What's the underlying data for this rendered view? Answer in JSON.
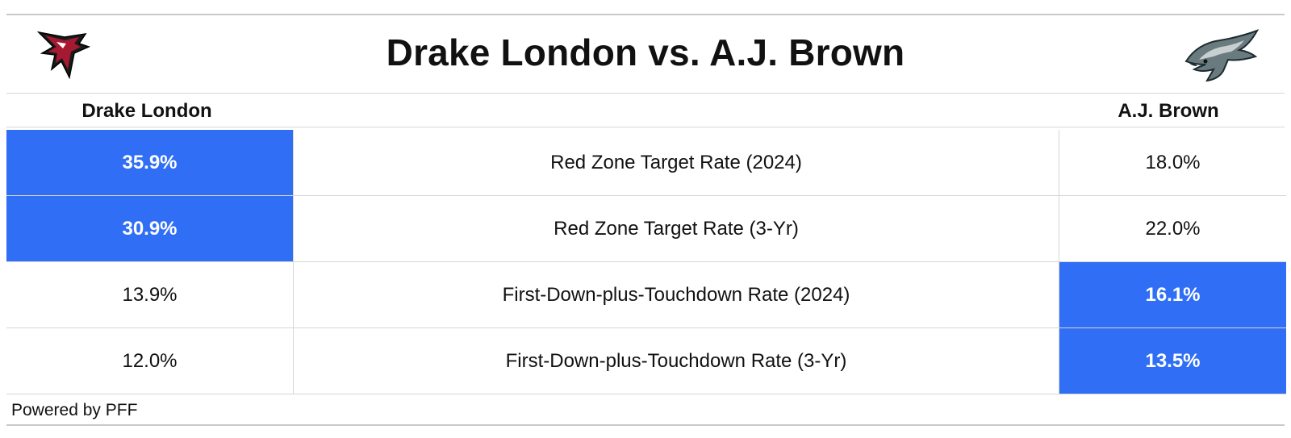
{
  "header": {
    "title": "Drake London vs. A.J. Brown",
    "left_logo_icon": "falcons-logo-icon",
    "right_logo_icon": "eagles-logo-icon"
  },
  "columns": {
    "left_player": "Drake London",
    "right_player": "A.J. Brown"
  },
  "colors": {
    "highlight": "#2f6ef5",
    "grid": "#d6d6d6"
  },
  "chart_data": {
    "type": "table",
    "title": "Drake London vs. A.J. Brown",
    "columns": [
      "Drake London",
      "",
      "A.J. Brown"
    ],
    "rows": [
      {
        "metric": "Red Zone Target Rate (2024)",
        "left": "35.9%",
        "right": "18.0%",
        "leader": "left"
      },
      {
        "metric": "Red Zone Target Rate (3-Yr)",
        "left": "30.9%",
        "right": "22.0%",
        "leader": "left"
      },
      {
        "metric": "First-Down-plus-Touchdown Rate (2024)",
        "left": "13.9%",
        "right": "16.1%",
        "leader": "right"
      },
      {
        "metric": "First-Down-plus-Touchdown Rate (3-Yr)",
        "left": "12.0%",
        "right": "13.5%",
        "leader": "right"
      }
    ]
  },
  "footer": {
    "credit": "Powered by PFF"
  }
}
